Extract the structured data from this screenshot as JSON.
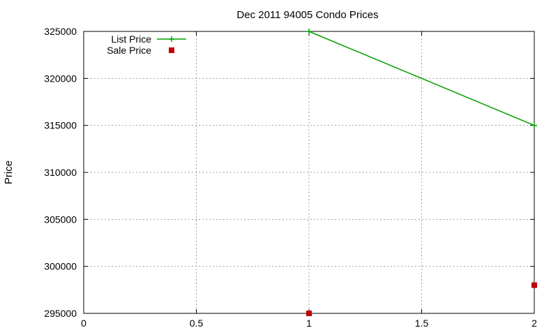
{
  "chart_data": {
    "type": "line",
    "title": "Dec 2011 94005 Condo Prices",
    "xlabel": "",
    "ylabel": "Price",
    "xlim": [
      0,
      2
    ],
    "ylim": [
      295000,
      325000
    ],
    "xticks": [
      0,
      0.5,
      1,
      1.5,
      2
    ],
    "xtick_labels": [
      "0",
      "0.5",
      "1",
      "1.5",
      "2"
    ],
    "yticks": [
      295000,
      300000,
      305000,
      310000,
      315000,
      320000,
      325000
    ],
    "ytick_labels": [
      "295000",
      "300000",
      "305000",
      "310000",
      "315000",
      "320000",
      "325000"
    ],
    "grid": true,
    "legend_position": "top-left",
    "series": [
      {
        "name": "List Price",
        "style": "linespoints",
        "marker": "plus",
        "color": "#00a000",
        "x": [
          1,
          2
        ],
        "y": [
          325000,
          315000
        ]
      },
      {
        "name": "Sale Price",
        "style": "points",
        "marker": "square",
        "color": "#c00000",
        "x": [
          1,
          2
        ],
        "y": [
          295000,
          298000
        ]
      }
    ]
  }
}
